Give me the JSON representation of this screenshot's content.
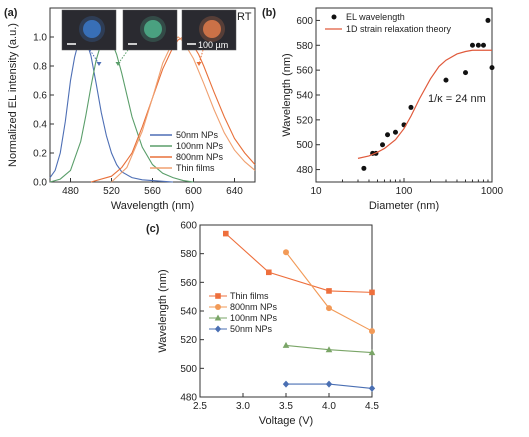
{
  "chart_data": [
    {
      "type": "line",
      "panel_label": "(a)",
      "xlabel": "Wavelength (nm)",
      "ylabel": "Normalized EL intensity (a.u.)",
      "xlim": [
        460,
        660
      ],
      "ylim": [
        0,
        1.2
      ],
      "xticks": [
        480,
        520,
        560,
        600,
        640
      ],
      "yticks": [
        0.0,
        0.2,
        0.4,
        0.6,
        0.8,
        1.0
      ],
      "annotation": "RT",
      "scale_bar_label": "100 µm",
      "inset_colors": [
        "#3a78c9",
        "#4fb08a",
        "#e07a4a"
      ],
      "legend_position": "lower-right",
      "series": [
        {
          "name": "50nm NPs",
          "color": "#4e6fb5",
          "x": [
            460,
            465,
            470,
            475,
            480,
            484,
            488,
            492,
            496,
            500,
            505,
            510,
            515,
            520,
            525,
            530,
            540,
            550,
            560,
            570,
            580
          ],
          "y": [
            0.03,
            0.08,
            0.2,
            0.42,
            0.7,
            0.86,
            0.97,
            1.0,
            0.96,
            0.87,
            0.68,
            0.48,
            0.32,
            0.2,
            0.12,
            0.07,
            0.03,
            0.015,
            0.01,
            0.005,
            0.0
          ]
        },
        {
          "name": "100nm NPs",
          "color": "#5a9e6a",
          "x": [
            460,
            470,
            480,
            490,
            495,
            500,
            505,
            510,
            515,
            520,
            525,
            530,
            535,
            540,
            550,
            560,
            570,
            580,
            590,
            600
          ],
          "y": [
            0.0,
            0.02,
            0.08,
            0.28,
            0.46,
            0.66,
            0.84,
            0.96,
            1.0,
            0.97,
            0.88,
            0.75,
            0.6,
            0.45,
            0.24,
            0.12,
            0.06,
            0.03,
            0.01,
            0.0
          ]
        },
        {
          "name": "800nm NPs",
          "color": "#e8703a",
          "x": [
            500,
            520,
            530,
            540,
            550,
            560,
            570,
            580,
            585,
            590,
            595,
            600,
            605,
            610,
            620,
            630,
            640,
            650,
            660
          ],
          "y": [
            0.0,
            0.04,
            0.1,
            0.2,
            0.38,
            0.58,
            0.78,
            0.93,
            0.98,
            1.0,
            0.98,
            0.94,
            0.88,
            0.8,
            0.62,
            0.45,
            0.3,
            0.2,
            0.12
          ]
        },
        {
          "name": "Thin films",
          "color": "#f0a070",
          "x": [
            520,
            535,
            550,
            560,
            570,
            580,
            585,
            590,
            600,
            610,
            620,
            630,
            640,
            650,
            660
          ],
          "y": [
            0.0,
            0.1,
            0.35,
            0.58,
            0.82,
            0.97,
            1.0,
            0.97,
            0.85,
            0.68,
            0.5,
            0.34,
            0.22,
            0.14,
            0.08
          ]
        }
      ]
    },
    {
      "type": "scatter",
      "panel_label": "(b)",
      "xlabel": "Diameter (nm)",
      "ylabel": "Wavelength (nm)",
      "xscale": "log",
      "xlim": [
        10,
        1000
      ],
      "ylim": [
        470,
        610
      ],
      "xticks": [
        10,
        100,
        1000
      ],
      "xtick_labels": [
        "10",
        "100",
        "1000"
      ],
      "yticks": [
        480,
        500,
        520,
        540,
        560,
        580,
        600
      ],
      "annotation": "1/κ = 24 nm",
      "legend_position": "top-left",
      "series": [
        {
          "name": "EL wavelength",
          "color": "#111111",
          "x": [
            35,
            44,
            48,
            57,
            65,
            80,
            100,
            120,
            300,
            500,
            600,
            700,
            800,
            900,
            1000
          ],
          "y": [
            481,
            493,
            493,
            500,
            508,
            510,
            516,
            530,
            552,
            558,
            580,
            580,
            580,
            600,
            562
          ]
        },
        {
          "name": "1D strain relaxation theory",
          "color": "#e05a3c",
          "x": [
            30,
            40,
            50,
            60,
            80,
            100,
            120,
            150,
            200,
            250,
            300,
            400,
            500,
            600,
            800,
            1000
          ],
          "y": [
            489,
            491,
            494,
            497,
            504,
            513,
            523,
            537,
            553,
            563,
            568,
            573,
            575,
            576,
            576,
            576
          ]
        }
      ]
    },
    {
      "type": "line",
      "panel_label": "(c)",
      "xlabel": "Voltage (V)",
      "ylabel": "Wavelength (nm)",
      "xlim": [
        2.5,
        4.5
      ],
      "ylim": [
        480,
        600
      ],
      "xticks": [
        2.5,
        3.0,
        3.5,
        4.0,
        4.5
      ],
      "xtick_labels": [
        "2.5",
        "3.0",
        "3.5",
        "4.0",
        "4.5"
      ],
      "yticks": [
        480,
        500,
        520,
        540,
        560,
        580,
        600
      ],
      "legend_position": "left",
      "series": [
        {
          "name": "Thin films",
          "color": "#ee6f3c",
          "marker": "square",
          "x": [
            2.8,
            3.3,
            4.0,
            4.5
          ],
          "y": [
            594,
            567,
            554,
            553
          ]
        },
        {
          "name": "800nm NPs",
          "color": "#f29a57",
          "marker": "circle",
          "x": [
            3.5,
            4.0,
            4.5
          ],
          "y": [
            581,
            542,
            526
          ]
        },
        {
          "name": "100nm NPs",
          "color": "#7aa567",
          "marker": "triangle",
          "x": [
            3.5,
            4.0,
            4.5
          ],
          "y": [
            516,
            513,
            511
          ]
        },
        {
          "name": "50nm NPs",
          "color": "#4a6fb3",
          "marker": "diamond",
          "x": [
            3.5,
            4.0,
            4.5
          ],
          "y": [
            489,
            489,
            486
          ]
        }
      ]
    }
  ]
}
